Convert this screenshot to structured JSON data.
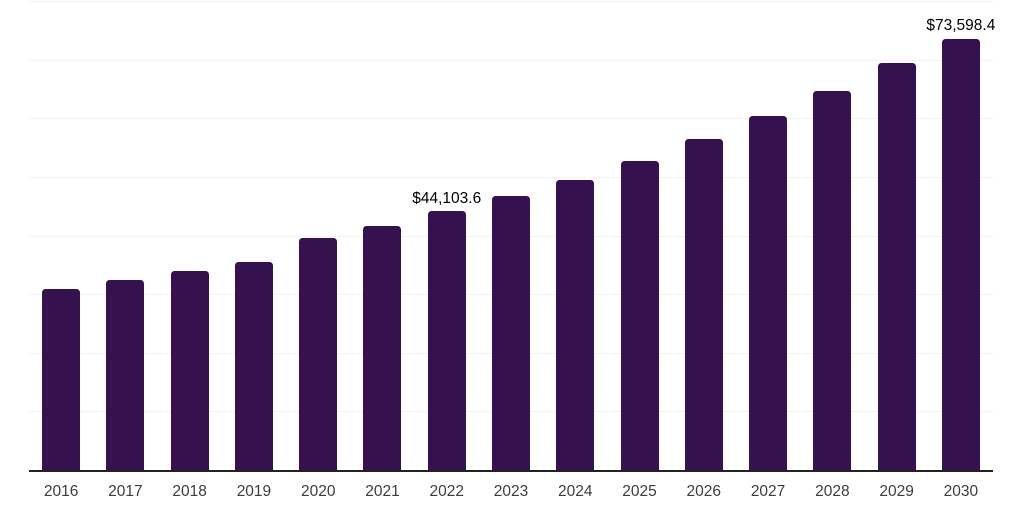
{
  "chart_data": {
    "type": "bar",
    "title": "",
    "xlabel": "",
    "ylabel": "",
    "categories": [
      "2016",
      "2017",
      "2018",
      "2019",
      "2020",
      "2021",
      "2022",
      "2023",
      "2024",
      "2025",
      "2026",
      "2027",
      "2028",
      "2029",
      "2030"
    ],
    "values": [
      30800,
      32500,
      33950,
      35450,
      39550,
      41700,
      44103.6,
      46700,
      49550,
      52800,
      56400,
      60350,
      64600,
      69450,
      73598.4
    ],
    "ylim": [
      0,
      80000
    ],
    "grid": true,
    "grid_step": 10000,
    "legend": false,
    "y_axis_labels_visible": false,
    "annotations": [
      {
        "category": "2022",
        "text": "$44,103.6"
      },
      {
        "category": "2030",
        "text": "$73,598.4"
      }
    ]
  },
  "colors": {
    "background": "#ffffff",
    "bar": "#361150",
    "gridline": "#f2f2f2",
    "axis_line": "#222222",
    "tick_label": "#3d3d3d",
    "data_label": "#000000"
  }
}
